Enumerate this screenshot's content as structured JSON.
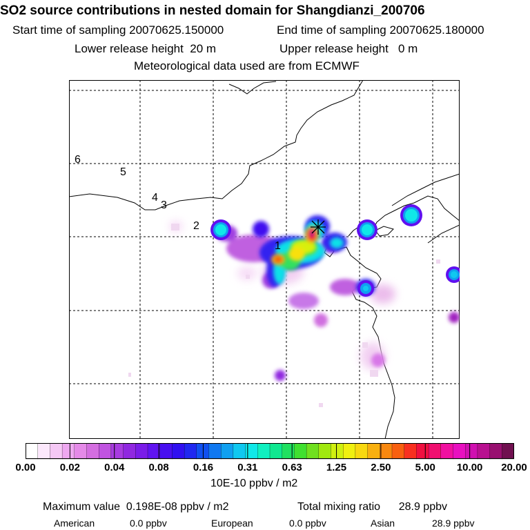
{
  "header": {
    "title": "SO2 source contributions in nested domain for Shangdianzi_200706",
    "start_label": "Start time of sampling",
    "start_value": "20070625.150000",
    "end_label": "End time of sampling",
    "end_value": "20070625.180000",
    "lower_label": "Lower release height",
    "lower_value": "20 m",
    "upper_label": "Upper release height",
    "upper_value": "0 m",
    "met": "Meteorological data used are from ECMWF"
  },
  "map": {
    "contour_labels": [
      "1",
      "2",
      "3",
      "4",
      "5",
      "6"
    ],
    "receptor_marker": "receptor-star"
  },
  "colorbar": {
    "ticks": [
      "0.00",
      "0.02",
      "0.04",
      "0.08",
      "0.16",
      "0.31",
      "0.63",
      "1.25",
      "2.50",
      "5.00",
      "10.00",
      "20.00"
    ],
    "colors": [
      "#ffffff",
      "#fce8fc",
      "#f5c8f5",
      "#eea8f0",
      "#e58ae8",
      "#d46ee0",
      "#c054e0",
      "#a83ce0",
      "#9028e0",
      "#7a1ce8",
      "#6014f0",
      "#4810f0",
      "#3010f0",
      "#2028f0",
      "#1050f0",
      "#1078f0",
      "#10a0f0",
      "#10c8f0",
      "#10e8e8",
      "#10f0c0",
      "#10e890",
      "#20e060",
      "#40e030",
      "#70e020",
      "#a0e810",
      "#d0f010",
      "#f0f010",
      "#f8d810",
      "#f8b010",
      "#f88810",
      "#f86010",
      "#f83020",
      "#f01040",
      "#f01070",
      "#f010a0",
      "#e810c0",
      "#d010b0",
      "#b81090",
      "#981070",
      "#701050"
    ],
    "unit": "10E-10 ppbv / m2"
  },
  "summary": {
    "max_label": "Maximum value",
    "max_value": "0.198E-08 ppbv / m2",
    "total_label": "Total mixing ratio",
    "total_value": "28.9 ppbv",
    "american_label": "American",
    "american_value": "0.0 ppbv",
    "european_label": "European",
    "european_value": "0.0 ppbv",
    "asian_label": "Asian",
    "asian_value": "28.9 ppbv"
  }
}
